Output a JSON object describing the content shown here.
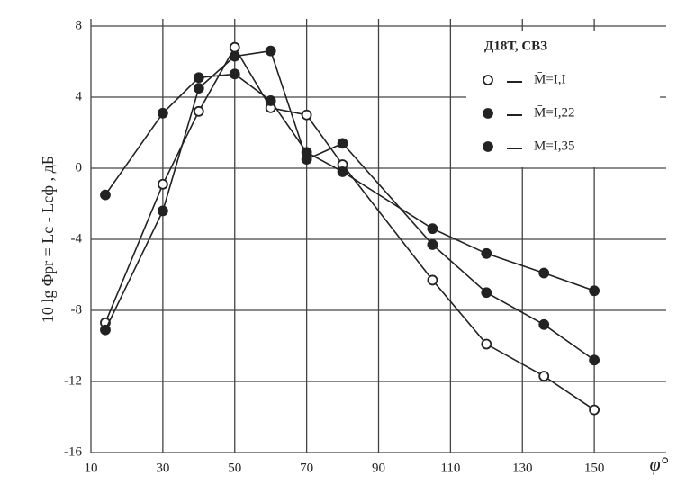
{
  "chart_data": {
    "type": "line",
    "x_label": "φ°",
    "y_label": "10 lg Φpr = Lc - Lсф , дБ",
    "legend_title": "Д18Т,   СВЗ",
    "xlim": [
      10,
      170
    ],
    "xticks": [
      10,
      30,
      50,
      70,
      90,
      110,
      130,
      150
    ],
    "ylim": [
      -16,
      8
    ],
    "yticks": [
      -16,
      -12,
      -8,
      -4,
      0,
      4,
      8
    ],
    "grid": true,
    "legend_position": "upper right",
    "series": [
      {
        "name": "M̄=I,I",
        "color": "#222222",
        "marker": "open",
        "x": [
          14,
          30,
          40,
          50,
          60,
          70,
          80,
          105,
          120,
          136,
          150
        ],
        "values": [
          -8.7,
          -0.9,
          3.2,
          6.8,
          3.4,
          3.0,
          0.2,
          -6.3,
          -9.9,
          -11.7,
          -13.6
        ]
      },
      {
        "name": "M̄=I,22",
        "color": "#222222",
        "marker": "filled",
        "x": [
          14,
          30,
          40,
          50,
          60,
          70,
          80,
          105,
          120,
          136,
          150
        ],
        "values": [
          -9.1,
          -2.4,
          4.5,
          6.3,
          6.6,
          0.5,
          1.4,
          -4.3,
          -7.0,
          -8.8,
          -10.8
        ]
      },
      {
        "name": "M̄=I,35",
        "color": "#222222",
        "marker": "filled",
        "x": [
          14,
          30,
          40,
          50,
          60,
          70,
          80,
          105,
          120,
          136,
          150
        ],
        "values": [
          -1.5,
          3.1,
          5.1,
          5.3,
          3.8,
          0.9,
          -0.2,
          -3.4,
          -4.8,
          -5.9,
          -6.9
        ]
      }
    ]
  }
}
